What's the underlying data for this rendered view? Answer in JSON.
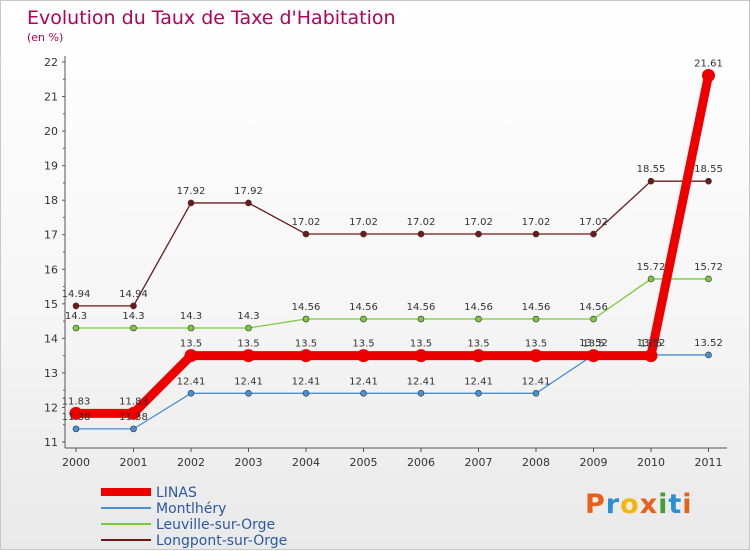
{
  "header": {
    "title": "Evolution du Taux de Taxe d'Habitation",
    "unit": "(en %)"
  },
  "brand": {
    "logo_text": "Proxiti",
    "logo_colors": [
      "#e8611a",
      "#2a8fd4",
      "#f2b70b",
      "#e8611a",
      "#44a035",
      "#2a8fd4",
      "#e8611a"
    ]
  },
  "chart_data": {
    "type": "line",
    "x": [
      "2000",
      "2001",
      "2002",
      "2003",
      "2004",
      "2005",
      "2006",
      "2007",
      "2008",
      "2009",
      "2010",
      "2011"
    ],
    "ylim": [
      11,
      22
    ],
    "yticks": [
      11,
      12,
      13,
      14,
      15,
      16,
      17,
      18,
      19,
      20,
      21,
      22
    ],
    "grid": false,
    "legend_position": "bottom-left",
    "series": [
      {
        "name": "LINAS",
        "color": "#ee0000",
        "emphasis": true,
        "values": [
          11.83,
          11.83,
          13.5,
          13.5,
          13.5,
          13.5,
          13.5,
          13.5,
          13.5,
          13.5,
          13.5,
          21.61
        ],
        "labels": [
          "11.83",
          "11.83",
          "13.5",
          "13.5",
          "13.5",
          "13.5",
          "13.5",
          "13.5",
          "13.5",
          "13.5",
          "13.5",
          "21.61"
        ]
      },
      {
        "name": "Montlhéry",
        "color": "#4a8fcf",
        "values": [
          11.38,
          11.38,
          12.41,
          12.41,
          12.41,
          12.41,
          12.41,
          12.41,
          12.41,
          13.52,
          13.52,
          13.52
        ],
        "labels": [
          "11.38",
          "11.38",
          "12.41",
          "12.41",
          "12.41",
          "12.41",
          "12.41",
          "12.41",
          "12.41",
          "13.52",
          "13.52",
          "13.52"
        ]
      },
      {
        "name": "Leuville-sur-Orge",
        "color": "#7acb3a",
        "values": [
          14.3,
          14.3,
          14.3,
          14.3,
          14.56,
          14.56,
          14.56,
          14.56,
          14.56,
          14.56,
          15.72,
          15.72
        ],
        "labels": [
          "14.3",
          "14.3",
          "14.3",
          "14.3",
          "14.56",
          "14.56",
          "14.56",
          "14.56",
          "14.56",
          "14.56",
          "15.72",
          "15.72"
        ]
      },
      {
        "name": "Longpont-sur-Orge",
        "color": "#6b1a1a",
        "values": [
          14.94,
          14.94,
          17.92,
          17.92,
          17.02,
          17.02,
          17.02,
          17.02,
          17.02,
          17.02,
          18.55,
          18.55
        ],
        "labels": [
          "14.94",
          "14.94",
          "17.92",
          "17.92",
          "17.02",
          "17.02",
          "17.02",
          "17.02",
          "17.02",
          "17.02",
          "18.55",
          "18.55"
        ]
      }
    ]
  }
}
